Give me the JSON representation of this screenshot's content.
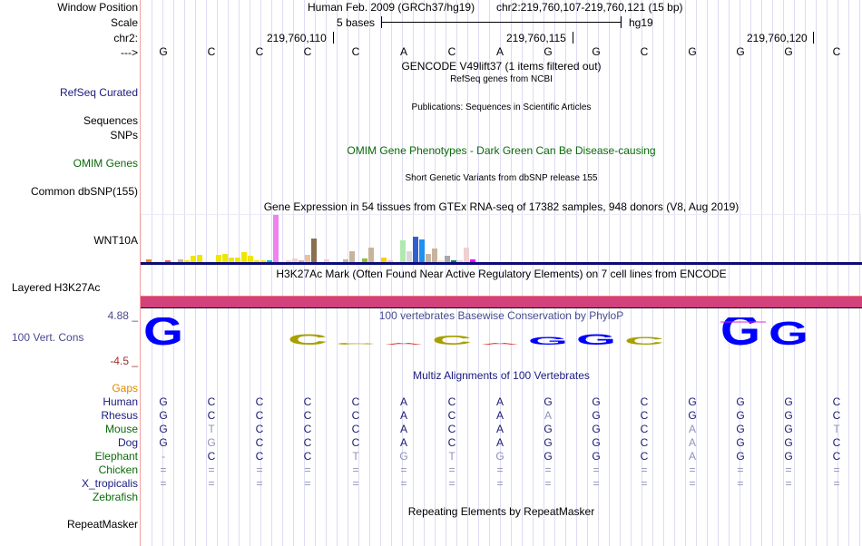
{
  "header": {
    "window_position_label": "Window Position",
    "assembly": "Human Feb. 2009 (GRCh37/hg19)",
    "position": "chr2:219,760,107-219,760,121 (15 bp)",
    "scale_label": "Scale",
    "scale_text": "5 bases",
    "scale_db": "hg19",
    "chrom_label": "chr2:",
    "strand_label": "--->",
    "coord_ticks": [
      "219,760,110",
      "219,760,115",
      "219,760,120"
    ]
  },
  "sequence": [
    "G",
    "C",
    "C",
    "C",
    "C",
    "A",
    "C",
    "A",
    "G",
    "G",
    "C",
    "G",
    "G",
    "G",
    "C"
  ],
  "tracks": {
    "gencode_title": "GENCODE V49lift37 (1 items filtered out)",
    "refseq_label": "RefSeq Curated",
    "refseq_title": "RefSeq genes from NCBI",
    "pubs_label_1": "Sequences",
    "pubs_title": "Publications: Sequences in Scientific Articles",
    "pubs_label_2": "SNPs",
    "omim_title": "OMIM Gene Phenotypes - Dark Green Can Be Disease-causing",
    "omim_label": "OMIM Genes",
    "dbsnp_title": "Short Genetic Variants from dbSNP release 155",
    "dbsnp_label": "Common dbSNP(155)",
    "gtex_title": "Gene Expression in 54 tissues from GTEx RNA-seq of 17382 samples, 948 donors (V8, Aug 2019)",
    "gtex_label": "WNT10A",
    "h3k27ac_title": "H3K27Ac Mark (Often Found Near Active Regulatory Elements) on 7 cell lines from ENCODE",
    "h3k27ac_label": "Layered H3K27Ac",
    "h3k27ac_color": "#d2417c",
    "cons_title": "100 vertebrates Basewise Conservation by PhyloP",
    "cons_label": "100 Vert. Cons",
    "cons_max": "4.88 _",
    "cons_min": "-4.5 _",
    "multiz_title": "Multiz Alignments of 100 Vertebrates",
    "repeat_title": "Repeating Elements by RepeatMasker",
    "repeat_label": "RepeatMasker"
  },
  "gtex": {
    "max_value": 1.0,
    "bars": [
      {
        "v": 0.06,
        "c": "#f08c10"
      },
      {
        "v": 0.0,
        "c": "#ffffff"
      },
      {
        "v": 0.0,
        "c": "#ffffff"
      },
      {
        "v": 0.03,
        "c": "#f0604a"
      },
      {
        "v": 0.0,
        "c": "#ffffff"
      },
      {
        "v": 0.06,
        "c": "#c8b49c"
      },
      {
        "v": 0.04,
        "c": "#f0e600"
      },
      {
        "v": 0.14,
        "c": "#f0e600"
      },
      {
        "v": 0.15,
        "c": "#f0e600"
      },
      {
        "v": 0.0,
        "c": "#ffffff"
      },
      {
        "v": 0.0,
        "c": "#ffffff"
      },
      {
        "v": 0.15,
        "c": "#f0e600"
      },
      {
        "v": 0.17,
        "c": "#f0e600"
      },
      {
        "v": 0.1,
        "c": "#f0e600"
      },
      {
        "v": 0.1,
        "c": "#f0e600"
      },
      {
        "v": 0.21,
        "c": "#f0e600"
      },
      {
        "v": 0.14,
        "c": "#f0e600"
      },
      {
        "v": 0.02,
        "c": "#f0e600"
      },
      {
        "v": 0.02,
        "c": "#f0e600"
      },
      {
        "v": 0.04,
        "c": "#00c0c8"
      },
      {
        "v": 1.0,
        "c": "#ee82ee"
      },
      {
        "v": 0.0,
        "c": "#ffffff"
      },
      {
        "v": 0.04,
        "c": "#f0d0d0"
      },
      {
        "v": 0.08,
        "c": "#f0d0d0"
      },
      {
        "v": 0.02,
        "c": "#c8b49c"
      },
      {
        "v": 0.15,
        "c": "#f0c090"
      },
      {
        "v": 0.5,
        "c": "#8a7050"
      },
      {
        "v": 0.0,
        "c": "#ffffff"
      },
      {
        "v": 0.05,
        "c": "#f0d0d0"
      },
      {
        "v": 0.0,
        "c": "#ffffff"
      },
      {
        "v": 0.0,
        "c": "#ffffff"
      },
      {
        "v": 0.06,
        "c": "#c8b49c"
      },
      {
        "v": 0.24,
        "c": "#c8b49c"
      },
      {
        "v": 0.0,
        "c": "#ffffff"
      },
      {
        "v": 0.08,
        "c": "#90c030"
      },
      {
        "v": 0.3,
        "c": "#c8b49c"
      },
      {
        "v": 0.0,
        "c": "#ffffff"
      },
      {
        "v": 0.09,
        "c": "#f8d000"
      },
      {
        "v": 0.02,
        "c": "#f0c0d0"
      },
      {
        "v": 0.0,
        "c": "#ffffff"
      },
      {
        "v": 0.47,
        "c": "#b0e8b0"
      },
      {
        "v": 0.24,
        "c": "#d8d8d8"
      },
      {
        "v": 0.54,
        "c": "#3060d0"
      },
      {
        "v": 0.48,
        "c": "#2090f0"
      },
      {
        "v": 0.18,
        "c": "#c8b49c"
      },
      {
        "v": 0.28,
        "c": "#c8b49c"
      },
      {
        "v": 0.03,
        "c": "#ffe0a0"
      },
      {
        "v": 0.14,
        "c": "#a8a8a8"
      },
      {
        "v": 0.04,
        "c": "#108040"
      },
      {
        "v": 0.02,
        "c": "#f0d0d0"
      },
      {
        "v": 0.31,
        "c": "#f0d0d0"
      },
      {
        "v": 0.06,
        "c": "#ff00ff"
      }
    ]
  },
  "conservation": [
    {
      "base": "G",
      "score": 0.9,
      "color": "#0000ff"
    },
    {
      "base": "C",
      "score": 0.0,
      "color": "#ffffff"
    },
    {
      "base": "C",
      "score": 0.0,
      "color": "#ffffff"
    },
    {
      "base": "C",
      "score": 0.35,
      "color": "#a8a000"
    },
    {
      "base": "C",
      "score": 0.05,
      "color": "#a8a000"
    },
    {
      "base": "A",
      "score": 0.05,
      "color": "#e04040"
    },
    {
      "base": "C",
      "score": 0.3,
      "color": "#a8a000"
    },
    {
      "base": "A",
      "score": 0.05,
      "color": "#e04040"
    },
    {
      "base": "G",
      "score": 0.25,
      "color": "#0000ff"
    },
    {
      "base": "G",
      "score": 0.35,
      "color": "#0000ff"
    },
    {
      "base": "C",
      "score": 0.25,
      "color": "#a8a000"
    },
    {
      "base": "G",
      "score": 0.0,
      "color": "#ffffff"
    },
    {
      "base": "G",
      "score": 1.0,
      "color": "#0000ff"
    },
    {
      "base": "G",
      "score": 0.75,
      "color": "#0000ff"
    },
    {
      "base": "C",
      "score": 0.0,
      "color": "#ffffff"
    }
  ],
  "multiz": {
    "gaps_label": "Gaps",
    "species": [
      {
        "name": "Human",
        "color": "navy",
        "bases": "GCCCCACAGGCGGGC",
        "dim": "..............."
      },
      {
        "name": "Rhesus",
        "color": "navy",
        "bases": "GCCCCACAAGCGGGC",
        "dim": "........x......"
      },
      {
        "name": "Mouse",
        "color": "green",
        "bases": "GTCCCACAGGCAGGT",
        "dim": ".x.........x..x"
      },
      {
        "name": "Dog",
        "color": "navy",
        "bases": "GGCCCACAGGCAGGC",
        "dim": ".x.........x..."
      },
      {
        "name": "Elephant",
        "color": "green",
        "bases": "-CCCTGTGGGCAGGC",
        "dim": "x...xxxx...x..."
      },
      {
        "name": "Chicken",
        "color": "green",
        "bases": "===============",
        "dim": "xxxxxxxxxxxxxxx"
      },
      {
        "name": "X_tropicalis",
        "color": "navy",
        "bases": "===============",
        "dim": "xxxxxxxxxxxxxxx"
      },
      {
        "name": "Zebrafish",
        "color": "green",
        "bases": "               ",
        "dim": "..............."
      }
    ]
  }
}
